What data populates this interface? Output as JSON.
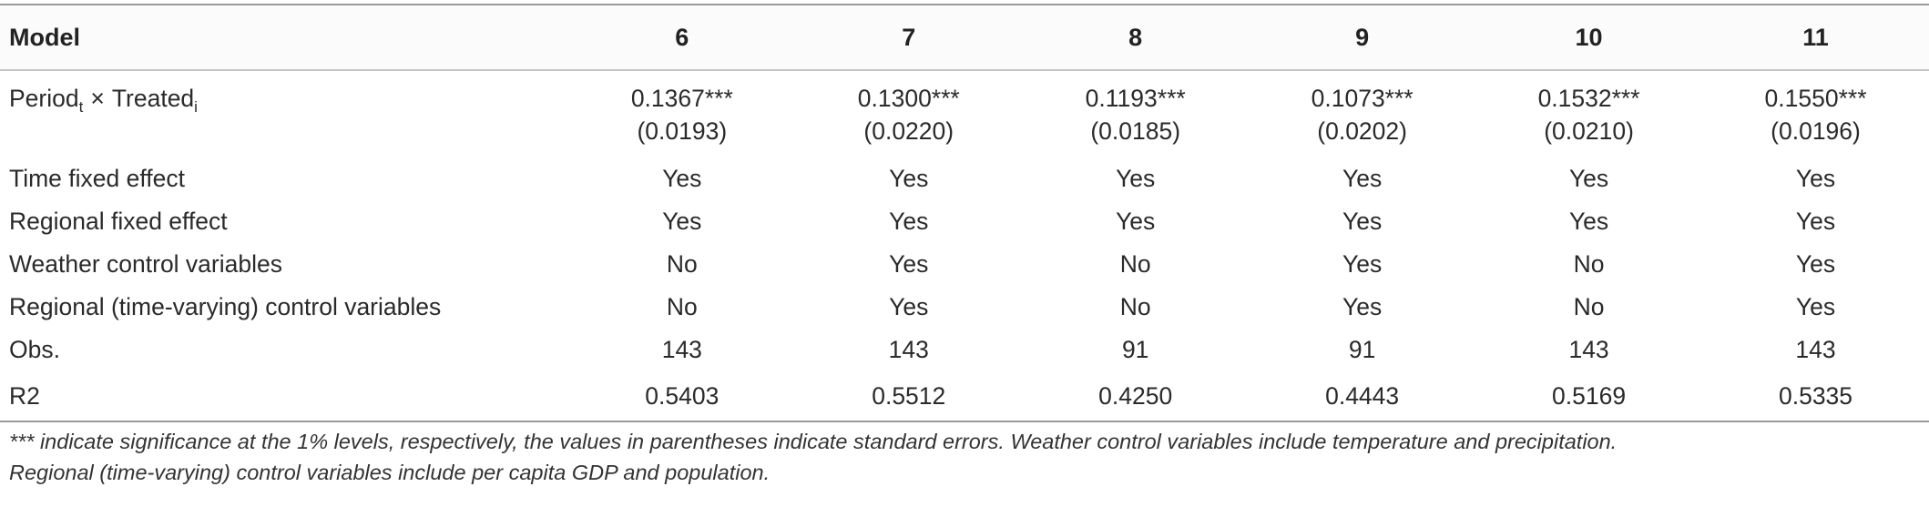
{
  "table": {
    "header": {
      "label": "Model",
      "models": [
        "6",
        "7",
        "8",
        "9",
        "10",
        "11"
      ]
    },
    "coef_row": {
      "label_main1": "Period",
      "label_sub1": "t",
      "label_times": "×",
      "label_main2": "Treated",
      "label_sub2": "i",
      "estimates": [
        "0.1367***",
        "0.1300***",
        "0.1193***",
        "0.1073***",
        "0.1532***",
        "0.1550***"
      ],
      "std_errors": [
        "(0.0193)",
        "(0.0220)",
        "(0.0185)",
        "(0.0202)",
        "(0.0210)",
        "(0.0196)"
      ]
    },
    "rows": [
      {
        "label": "Time fixed effect",
        "values": [
          "Yes",
          "Yes",
          "Yes",
          "Yes",
          "Yes",
          "Yes"
        ]
      },
      {
        "label": "Regional fixed effect",
        "values": [
          "Yes",
          "Yes",
          "Yes",
          "Yes",
          "Yes",
          "Yes"
        ]
      },
      {
        "label": "Weather control variables",
        "values": [
          "No",
          "Yes",
          "No",
          "Yes",
          "No",
          "Yes"
        ]
      },
      {
        "label": "Regional (time-varying) control variables",
        "values": [
          "No",
          "Yes",
          "No",
          "Yes",
          "No",
          "Yes"
        ]
      },
      {
        "label": "Obs.",
        "values": [
          "143",
          "143",
          "91",
          "91",
          "143",
          "143"
        ]
      },
      {
        "label": "R2",
        "values": [
          "0.5403",
          "0.5512",
          "0.4250",
          "0.4443",
          "0.5169",
          "0.5335"
        ]
      }
    ]
  },
  "note": {
    "line1": "*** indicate significance at the 1% levels, respectively, the values in parentheses indicate standard errors. Weather control variables include temperature and precipitation.",
    "line2": "Regional (time-varying) control variables include per capita GDP and population."
  }
}
